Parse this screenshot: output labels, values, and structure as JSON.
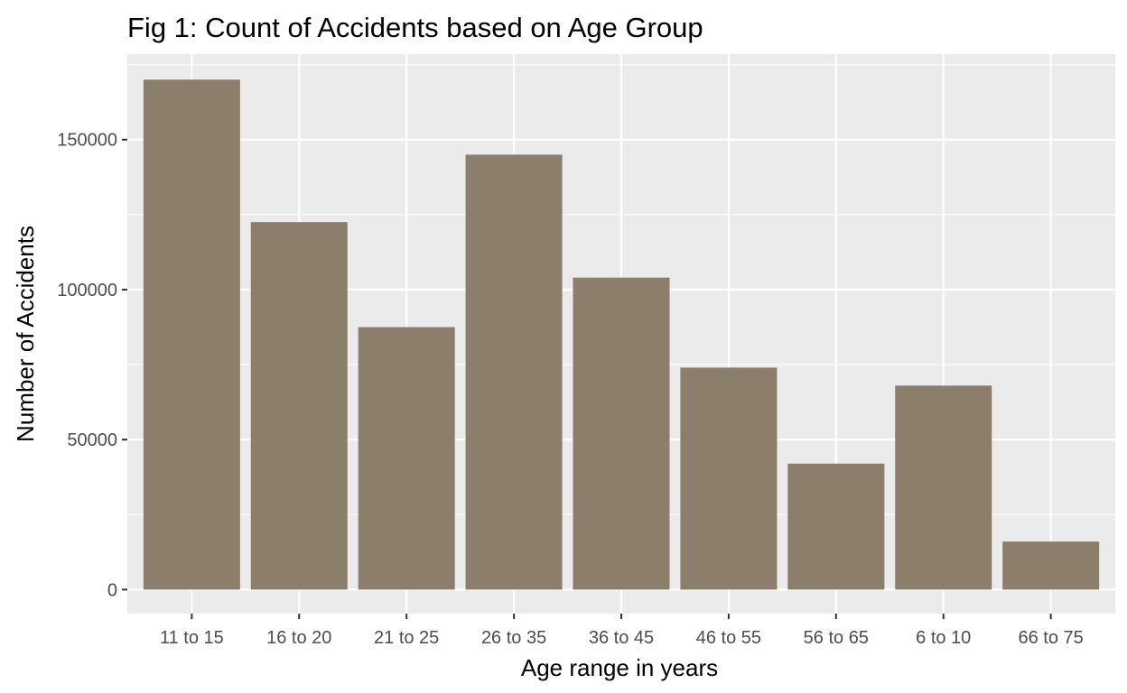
{
  "chart_data": {
    "type": "bar",
    "title": "Fig 1: Count of Accidents based on Age Group",
    "xlabel": "Age range in years",
    "ylabel": "Number of Accidents",
    "categories": [
      "11 to 15",
      "16 to 20",
      "21 to 25",
      "26 to 35",
      "36 to 45",
      "46 to 55",
      "56 to 65",
      "6 to 10",
      "66 to 75"
    ],
    "values": [
      170000,
      122500,
      87500,
      145000,
      104000,
      74000,
      42000,
      68000,
      16000
    ],
    "ylim": [
      -8000,
      178500
    ],
    "yticks": [
      0,
      50000,
      100000,
      150000
    ],
    "ytick_labels": [
      "0",
      "50000",
      "100000",
      "150000"
    ],
    "grid": true,
    "legend": "none"
  },
  "colors": {
    "bar_fill": "#8b7e6b",
    "panel_background": "#ebebeb",
    "grid_line": "#ffffff",
    "tick_label": "#4d4d4d",
    "tick_mark": "#333333",
    "text": "#000000"
  }
}
